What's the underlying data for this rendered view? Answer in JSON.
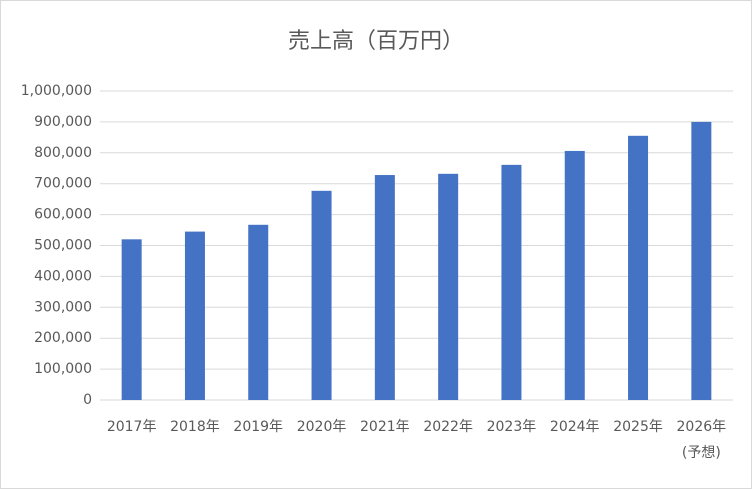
{
  "chart_data": {
    "type": "bar",
    "title": "売上高（百万円）",
    "categories": [
      "2017年",
      "2018年",
      "2019年",
      "2020年",
      "2021年",
      "2022年",
      "2023年",
      "2024年",
      "2025年",
      "2026年\n(予想)"
    ],
    "values": [
      520000,
      545000,
      567000,
      677000,
      728000,
      732000,
      761000,
      806000,
      855000,
      900000
    ],
    "color": "#4472c4",
    "ylim": [
      0,
      1000000
    ],
    "yticks": [
      0,
      {
        "value": 100000,
        "label": "100,000"
      },
      {
        "value": 200000,
        "label": "200,000"
      },
      {
        "value": 300000,
        "label": "300,000"
      },
      {
        "value": 400000,
        "label": "400,000"
      },
      {
        "value": 500000,
        "label": "500,000"
      },
      {
        "value": 600000,
        "label": "600,000"
      },
      {
        "value": 700000,
        "label": "700,000"
      },
      {
        "value": 800000,
        "label": "800,000"
      },
      {
        "value": 900000,
        "label": "900,000"
      },
      {
        "value": 1000000,
        "label": "1,000,000"
      }
    ],
    "grid": true
  }
}
